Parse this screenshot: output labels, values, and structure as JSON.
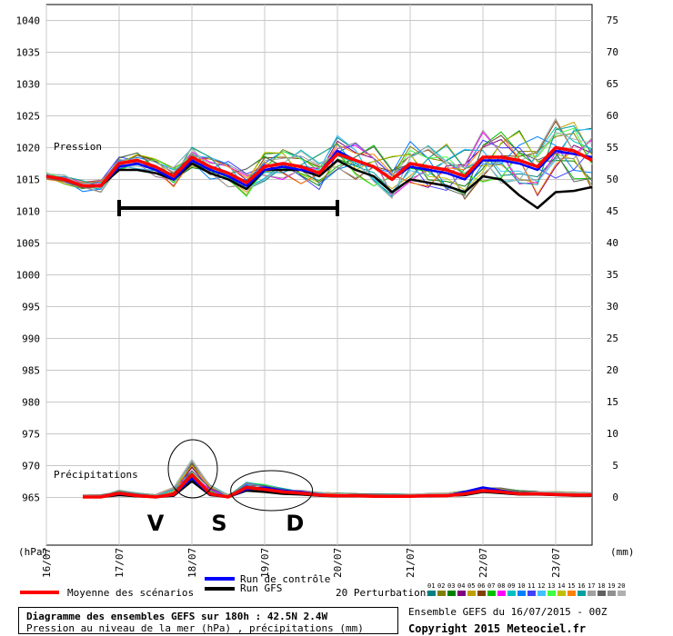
{
  "chart_data": {
    "type": "line",
    "title": "Diagramme des ensembles GEFS sur 180h : 42.5N 2.4W",
    "subtitle": "Pression au niveau de la mer (hPa) , précipitations (mm)",
    "run_info": "Ensemble GEFS du 16/07/2015 - 00Z",
    "copyright": "Copyright 2015 Meteociel.fr",
    "left_axis": {
      "unit_label": "(hPa)",
      "ticks": [
        1040,
        1035,
        1030,
        1025,
        1020,
        1015,
        1010,
        1005,
        1000,
        995,
        990,
        985,
        980,
        975,
        970,
        965
      ],
      "range": [
        960,
        1043
      ]
    },
    "right_axis": {
      "unit_label": "(mm)",
      "ticks": [
        75,
        70,
        65,
        60,
        55,
        50,
        45,
        40,
        35,
        30,
        25,
        20,
        15,
        10,
        5,
        0
      ],
      "range": [
        -5,
        78
      ]
    },
    "x_ticks": [
      "16/07",
      "17/07",
      "18/07",
      "19/07",
      "20/07",
      "21/07",
      "22/07",
      "23/07"
    ],
    "x_hours": [
      0,
      24,
      48,
      72,
      96,
      120,
      144,
      168
    ],
    "x_max_hours": 180,
    "grid": true,
    "section_labels": {
      "pressure": "Pression",
      "precip": "Précipitations"
    },
    "series": [
      {
        "name": "Moyenne des scénarios",
        "color": "#ff0000",
        "hours": [
          0,
          6,
          12,
          18,
          24,
          30,
          36,
          42,
          48,
          54,
          60,
          66,
          72,
          78,
          84,
          90,
          96,
          102,
          108,
          114,
          120,
          126,
          132,
          138,
          144,
          150,
          156,
          162,
          168,
          174,
          180
        ],
        "pressure": [
          1015.5,
          1015.0,
          1014.0,
          1014.0,
          1017.5,
          1018.0,
          1017.0,
          1015.5,
          1018.5,
          1017.0,
          1016.0,
          1014.5,
          1017.0,
          1017.5,
          1017.0,
          1016.0,
          1019.0,
          1018.0,
          1017.0,
          1015.0,
          1017.5,
          1017.0,
          1016.5,
          1015.5,
          1018.5,
          1018.5,
          1018.0,
          1017.0,
          1020.0,
          1019.5,
          1018.0
        ],
        "precip": [
          null,
          null,
          0,
          0,
          0.6,
          0.2,
          0,
          0.4,
          3.5,
          0.5,
          0,
          1.5,
          1.2,
          0.8,
          0.6,
          0.3,
          0.2,
          0.2,
          0.1,
          0.1,
          0.1,
          0.2,
          0.2,
          0.5,
          1.0,
          0.8,
          0.5,
          0.5,
          0.4,
          0.3,
          0.3
        ]
      },
      {
        "name": "Run de contrôle",
        "color": "#0000ff",
        "hours": [
          0,
          6,
          12,
          18,
          24,
          30,
          36,
          42,
          48,
          54,
          60,
          66,
          72,
          78,
          84,
          90,
          96,
          102,
          108,
          114,
          120,
          126,
          132,
          138,
          144,
          150,
          156,
          162,
          168,
          174,
          180
        ],
        "pressure": [
          1015.5,
          1015.0,
          1014.0,
          1014.0,
          1017.0,
          1017.5,
          1016.5,
          1015.0,
          1018.0,
          1016.5,
          1015.5,
          1014.0,
          1016.5,
          1017.0,
          1016.5,
          1016.0,
          1019.5,
          1018.0,
          1017.0,
          1015.0,
          1017.0,
          1016.5,
          1016.0,
          1015.0,
          1018.0,
          1018.0,
          1017.5,
          1016.5,
          1019.5,
          1019.0,
          1018.5
        ],
        "precip": [
          null,
          null,
          0,
          0,
          0.5,
          0.2,
          0,
          0.3,
          3.0,
          0.4,
          0,
          1.2,
          1.5,
          1.0,
          0.8,
          0.4,
          0.2,
          0.2,
          0.1,
          0.1,
          0.1,
          0.2,
          0.2,
          0.8,
          1.5,
          1.0,
          0.6,
          0.5,
          0.4,
          0.3,
          0.3
        ]
      },
      {
        "name": "Run GFS",
        "color": "#000000",
        "hours": [
          0,
          6,
          12,
          18,
          24,
          30,
          36,
          42,
          48,
          54,
          60,
          66,
          72,
          78,
          84,
          90,
          96,
          102,
          108,
          114,
          120,
          126,
          132,
          138,
          144,
          150,
          156,
          162,
          168,
          174,
          180
        ],
        "pressure": [
          1015.5,
          1015.0,
          1014.0,
          1014.0,
          1016.5,
          1016.5,
          1016.0,
          1015.0,
          1017.5,
          1016.0,
          1015.0,
          1013.5,
          1016.5,
          1016.5,
          1016.5,
          1015.5,
          1018.0,
          1016.5,
          1015.5,
          1013.0,
          1015.0,
          1014.5,
          1014.0,
          1013.0,
          1015.5,
          1015.0,
          1012.5,
          1010.5,
          1013.0,
          1013.2,
          1013.8
        ],
        "precip": [
          null,
          null,
          0,
          0,
          0.3,
          0.1,
          0,
          0.2,
          2.5,
          0.3,
          0,
          1.0,
          0.8,
          0.5,
          0.4,
          0.2,
          0.1,
          0.1,
          0.1,
          0.1,
          0.1,
          0.1,
          0.2,
          0.3,
          0.8,
          0.6,
          0.4,
          0.4,
          0.3,
          0.2,
          0.2
        ]
      }
    ],
    "bracket": {
      "from_hours": 24,
      "to_hours": 96,
      "pressure": 1010.5
    },
    "event_letters": [
      {
        "text": "V",
        "hours": 36
      },
      {
        "text": "S",
        "hours": 57
      },
      {
        "text": "D",
        "hours": 82
      }
    ],
    "circles": [
      {
        "hours": 48,
        "precip": 4
      },
      {
        "hours": 74,
        "precip": 2
      }
    ]
  },
  "legend": {
    "mean": {
      "label": "Moyenne des scénarios",
      "color": "#ff0000"
    },
    "control": {
      "label": "Run de contrôle",
      "color": "#0000ff"
    },
    "gfs": {
      "label": "Run GFS",
      "color": "#000000"
    },
    "perturbations": {
      "label": "20 Perturbations",
      "numbers": [
        "01",
        "02",
        "03",
        "04",
        "05",
        "06",
        "07",
        "08",
        "09",
        "10",
        "11",
        "12",
        "13",
        "14",
        "15",
        "16",
        "17",
        "18",
        "19",
        "20"
      ],
      "colors": [
        "#008080",
        "#808000",
        "#008000",
        "#800080",
        "#c0a000",
        "#804000",
        "#00c000",
        "#ff00ff",
        "#00c0c0",
        "#0080ff",
        "#4040ff",
        "#40c0ff",
        "#40ff40",
        "#c0c000",
        "#ff8000",
        "#00a0a0",
        "#a0a0a0",
        "#606060",
        "#909090",
        "#b0b0b0"
      ]
    }
  }
}
